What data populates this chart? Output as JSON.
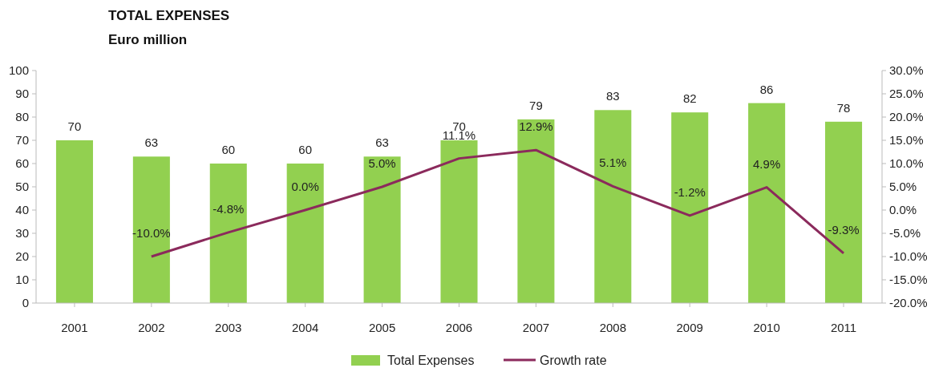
{
  "chart_data": {
    "type": "bar",
    "title": "TOTAL EXPENSES",
    "subtitle": "Euro million",
    "categories": [
      "2001",
      "2002",
      "2003",
      "2004",
      "2005",
      "2006",
      "2007",
      "2008",
      "2009",
      "2010",
      "2011"
    ],
    "series": [
      {
        "name": "Total Expenses",
        "color": "#92d050",
        "values": [
          70,
          63,
          60,
          60,
          63,
          70,
          79,
          83,
          82,
          86,
          78
        ],
        "value_labels": [
          "70",
          "63",
          "60",
          "60",
          "63",
          "70",
          "79",
          "83",
          "82",
          "86",
          "78"
        ]
      },
      {
        "name": "Growth rate",
        "type": "line",
        "axis": "y2",
        "color": "#8b2a5c",
        "values": [
          null,
          -10.0,
          -4.8,
          0.0,
          5.0,
          11.1,
          12.9,
          5.1,
          -1.2,
          4.9,
          -9.3
        ],
        "value_labels": [
          null,
          "-10.0%",
          "-4.8%",
          "0.0%",
          "5.0%",
          "11.1%",
          "12.9%",
          "5.1%",
          "-1.2%",
          "4.9%",
          "-9.3%"
        ]
      }
    ],
    "ylim": [
      0,
      100
    ],
    "yticks": [
      0,
      10,
      20,
      30,
      40,
      50,
      60,
      70,
      80,
      90,
      100
    ],
    "y2lim": [
      -20,
      30
    ],
    "y2ticks": [
      {
        "value": -20,
        "label": "-20.0%"
      },
      {
        "value": -15,
        "label": "-15.0%"
      },
      {
        "value": -10,
        "label": "-10.0%"
      },
      {
        "value": -5,
        "label": "-5.0%"
      },
      {
        "value": 0,
        "label": "0.0%"
      },
      {
        "value": 5,
        "label": "5.0%"
      },
      {
        "value": 10,
        "label": "10.0%"
      },
      {
        "value": 15,
        "label": "15.0%"
      },
      {
        "value": 20,
        "label": "20.0%"
      },
      {
        "value": 25,
        "label": "25.0%"
      },
      {
        "value": 30,
        "label": "30.0%"
      }
    ],
    "grid": false,
    "legend": "bottom",
    "marker": "none",
    "line_style": "solid"
  }
}
